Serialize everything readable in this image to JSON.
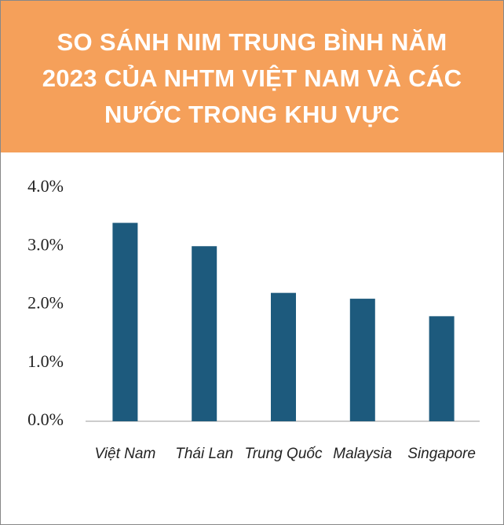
{
  "chart_data": {
    "type": "bar",
    "title": "SO SÁNH NIM TRUNG BÌNH NĂM 2023 CỦA NHTM VIỆT NAM VÀ CÁC NƯỚC TRONG KHU VỰC",
    "categories": [
      "Việt Nam",
      "Thái Lan",
      "Trung Quốc",
      "Malaysia",
      "Singapore"
    ],
    "values": [
      3.4,
      3.0,
      2.2,
      2.1,
      1.8
    ],
    "color": "#1d5a7d",
    "ylim": [
      0,
      4
    ],
    "yticks": [
      {
        "value": 0,
        "label": "0.0%"
      },
      {
        "value": 1,
        "label": "1.0%"
      },
      {
        "value": 2,
        "label": "2.0%"
      },
      {
        "value": 3,
        "label": "3.0%"
      },
      {
        "value": 4,
        "label": "4.0%"
      }
    ],
    "grid": false
  }
}
